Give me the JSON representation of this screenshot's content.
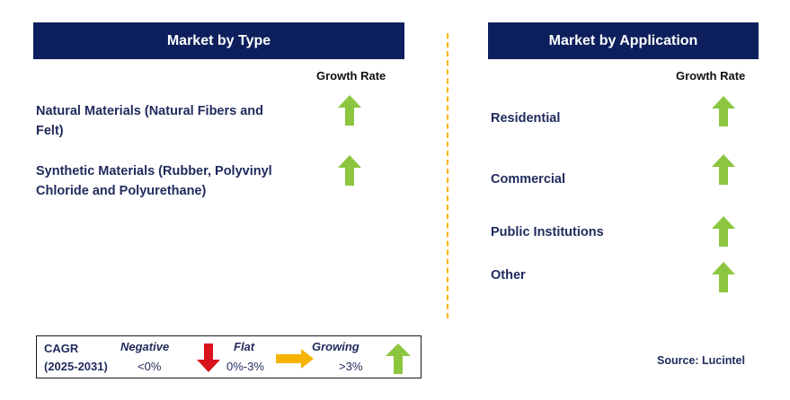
{
  "left_panel": {
    "title": "Market by Type",
    "growth_rate_label": "Growth Rate",
    "items": [
      {
        "line1": "Natural Materials (Natural Fibers and",
        "line2": "Felt)",
        "trend": "growing"
      },
      {
        "line1": "Synthetic Materials (Rubber, Polyvinyl",
        "line2": "Chloride and Polyurethane)",
        "trend": "growing"
      }
    ]
  },
  "right_panel": {
    "title": "Market by Application",
    "growth_rate_label": "Growth Rate",
    "items": [
      {
        "label": "Residential",
        "trend": "growing"
      },
      {
        "label": "Commercial",
        "trend": "growing"
      },
      {
        "label": "Public Institutions",
        "trend": "growing"
      },
      {
        "label": "Other",
        "trend": "growing"
      }
    ]
  },
  "legend": {
    "cagr_label": "CAGR",
    "period": "(2025-2031)",
    "negative_label": "Negative",
    "negative_range": "<0%",
    "flat_label": "Flat",
    "flat_range": "0%-3%",
    "growing_label": "Growing",
    "growing_range": ">3%"
  },
  "source": "Source: Lucintel",
  "colors": {
    "header_bg": "#0d1f5c",
    "growing_arrow": "#8cc63f",
    "negative_arrow": "#d9131b",
    "flat_arrow": "#f5b400",
    "divider": "#f5b400"
  }
}
